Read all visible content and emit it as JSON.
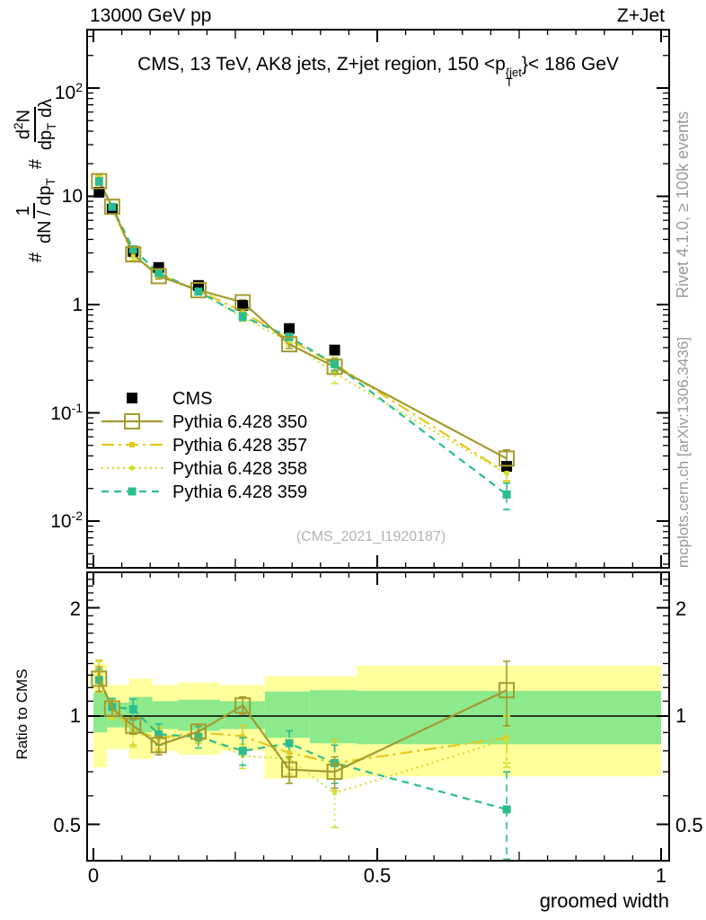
{
  "header": {
    "left": "13000 GeV pp",
    "right": "Z+Jet"
  },
  "title": {
    "prefix": "CMS, 13 TeV, AK8 jets, Z+jet region, 150 <p",
    "sup": "{jet",
    "sub": "T",
    "suffix": "}< 186 GeV"
  },
  "ylabel": {
    "hash": "#",
    "f1num": "1",
    "f1den_a": "dN / dp",
    "f1den_sub": "T",
    "f2num_a": "d",
    "f2num_sup": "2",
    "f2num_b": "N",
    "f2den_a": "dp",
    "f2den_sub": "T",
    "f2den_b": " dλ"
  },
  "axes": {
    "xlabel": "groomed width",
    "x_ticks": [
      "0",
      "0.5",
      "1"
    ],
    "main_y_ticks": [
      {
        "base": "10",
        "exp": "2"
      },
      {
        "base": "10",
        "exp": ""
      },
      {
        "base": "1",
        "exp": ""
      },
      {
        "base": "10",
        "exp": "-1"
      },
      {
        "base": "10",
        "exp": "-2"
      }
    ],
    "ratio_y_ticks": [
      "2",
      "1",
      "0.5"
    ],
    "ratio_ylabel": "Ratio to CMS"
  },
  "side_notes": {
    "top": "Rivet 4.1.0, ≥ 100k events",
    "bottom": "mcplots.cern.ch [arXiv:1306.3436]"
  },
  "watermark": "(CMS_2021_I1920187)",
  "legend": [
    "CMS",
    "Pythia 6.428 350",
    "Pythia 6.428 357",
    "Pythia 6.428 358",
    "Pythia 6.428 359"
  ],
  "colors": {
    "cms": "#000000",
    "s350": "#a39b2e",
    "s357": "#e3c81e",
    "s358": "#cfe032",
    "s359": "#2bbd8e",
    "band_green": "#8ce98c",
    "band_yellow": "#ffff9c",
    "gray_text": "#999999",
    "watermark": "#b3b3b3"
  },
  "chart_data": {
    "type": "line",
    "title": "CMS, 13 TeV, AK8 jets, Z+jet region, 150 < pT^{jet} < 186 GeV",
    "xlabel": "groomed width",
    "ylabel": "# 1/(dN/dpT) d2N/(dpT dlambda)",
    "ratio_ylabel": "Ratio to CMS",
    "legend_position": "middle-left",
    "grid": false,
    "x": [
      0.01,
      0.033,
      0.07,
      0.115,
      0.185,
      0.263,
      0.345,
      0.425,
      0.728
    ],
    "xlim": [
      -0.011,
      1.015
    ],
    "main_ylog": true,
    "main_ylim": [
      0.0037,
      345
    ],
    "ratio_ylog": true,
    "ratio_ylim": [
      0.396,
      2.51
    ],
    "series": [
      {
        "name": "CMS",
        "role": "data",
        "color_key": "cms",
        "line": null,
        "marker": "square",
        "msize": 12,
        "values": [
          10.9,
          7.6,
          3.1,
          2.2,
          1.5,
          0.98,
          0.6,
          0.38,
          0.032
        ]
      },
      {
        "name": "Pythia 6.428 350",
        "role": "mc",
        "color_key": "s350",
        "line": "solid",
        "marker": "square-open",
        "msize": 16,
        "values": [
          13.8,
          8.0,
          2.91,
          1.83,
          1.36,
          1.05,
          0.43,
          0.266,
          0.0378
        ],
        "ratio": [
          1.27,
          1.05,
          0.94,
          0.83,
          0.905,
          1.07,
          0.71,
          0.7,
          1.18
        ],
        "ratio_err": [
          0.1,
          0.05,
          0.05,
          0.05,
          0.04,
          0.06,
          0.06,
          0.07,
          0.24
        ]
      },
      {
        "name": "Pythia 6.428 357",
        "role": "mc",
        "color_key": "s357",
        "line": "dashdot",
        "marker": "square",
        "msize": 5,
        "values": [
          14.2,
          8.0,
          2.82,
          1.91,
          1.35,
          0.86,
          0.474,
          0.281,
          0.0278
        ],
        "ratio": [
          1.3,
          1.05,
          0.91,
          0.87,
          0.9,
          0.88,
          0.79,
          0.74,
          0.87
        ],
        "ratio_err": [
          0.13,
          0.06,
          0.08,
          0.06,
          0.05,
          0.06,
          0.07,
          0.12,
          0.13
        ]
      },
      {
        "name": "Pythia 6.428 358",
        "role": "mc",
        "color_key": "s358",
        "line": "dot",
        "marker": "dot",
        "msize": 5,
        "values": [
          14.0,
          7.9,
          2.79,
          1.89,
          1.34,
          0.76,
          0.456,
          0.232,
          0.0275
        ],
        "ratio": [
          1.29,
          1.04,
          0.9,
          0.86,
          0.89,
          0.775,
          0.76,
          0.61,
          0.86
        ],
        "ratio_err": [
          0.13,
          0.06,
          0.08,
          0.06,
          0.05,
          0.06,
          0.07,
          0.12,
          0.14
        ]
      },
      {
        "name": "Pythia 6.428 359",
        "role": "mc",
        "color_key": "s359",
        "line": "dash",
        "marker": "square",
        "msize": 9,
        "values": [
          13.7,
          8.0,
          3.24,
          1.96,
          1.32,
          0.78,
          0.504,
          0.281,
          0.0176
        ],
        "ratio": [
          1.26,
          1.06,
          1.045,
          0.89,
          0.875,
          0.8,
          0.84,
          0.74,
          0.55
        ],
        "ratio_err": [
          0.09,
          0.06,
          0.07,
          0.06,
          0.06,
          0.07,
          0.07,
          0.09,
          0.15
        ]
      }
    ],
    "bands": {
      "edges": [
        0,
        0.024,
        0.063,
        0.104,
        0.149,
        0.223,
        0.302,
        0.381,
        0.464,
        1.0
      ],
      "yellow": [
        [
          0.72,
          1.4
        ],
        [
          0.81,
          1.22
        ],
        [
          0.76,
          1.27
        ],
        [
          0.8,
          1.22
        ],
        [
          0.78,
          1.24
        ],
        [
          0.8,
          1.22
        ],
        [
          0.67,
          1.29
        ],
        [
          0.67,
          1.29
        ],
        [
          0.68,
          1.38
        ]
      ],
      "green": [
        [
          0.9,
          1.16
        ],
        [
          0.93,
          1.09
        ],
        [
          0.9,
          1.13
        ],
        [
          0.92,
          1.1
        ],
        [
          0.91,
          1.11
        ],
        [
          0.92,
          1.1
        ],
        [
          0.87,
          1.17
        ],
        [
          0.84,
          1.18
        ],
        [
          0.835,
          1.175
        ]
      ]
    }
  }
}
